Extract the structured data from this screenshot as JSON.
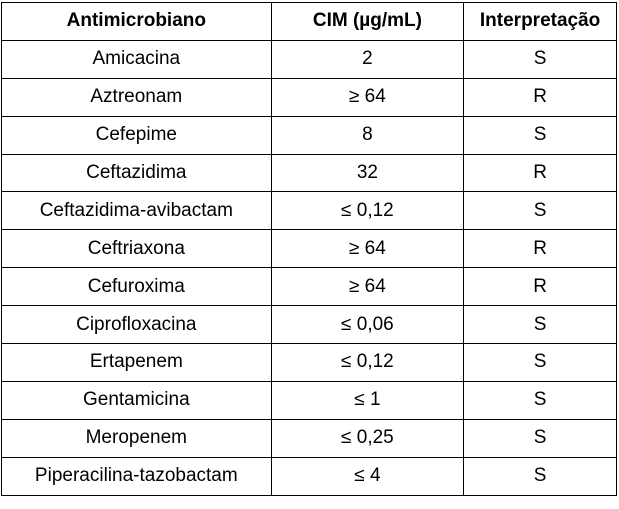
{
  "table": {
    "headers": [
      "Antimicrobiano",
      "CIM (µg/mL)",
      "Interpretação"
    ],
    "rows": [
      [
        "Amicacina",
        "2",
        "S"
      ],
      [
        "Aztreonam",
        "≥ 64",
        "R"
      ],
      [
        "Cefepime",
        "8",
        "S"
      ],
      [
        "Ceftazidima",
        "32",
        "R"
      ],
      [
        "Ceftazidima-avibactam",
        "≤ 0,12",
        "S"
      ],
      [
        "Ceftriaxona",
        "≥ 64",
        "R"
      ],
      [
        "Cefuroxima",
        "≥ 64",
        "R"
      ],
      [
        "Ciprofloxacina",
        "≤ 0,06",
        "S"
      ],
      [
        "Ertapenem",
        "≤ 0,12",
        "S"
      ],
      [
        "Gentamicina",
        "≤ 1",
        "S"
      ],
      [
        "Meropenem",
        "≤ 0,25",
        "S"
      ],
      [
        "Piperacilina-tazobactam",
        "≤ 4",
        "S"
      ]
    ]
  }
}
